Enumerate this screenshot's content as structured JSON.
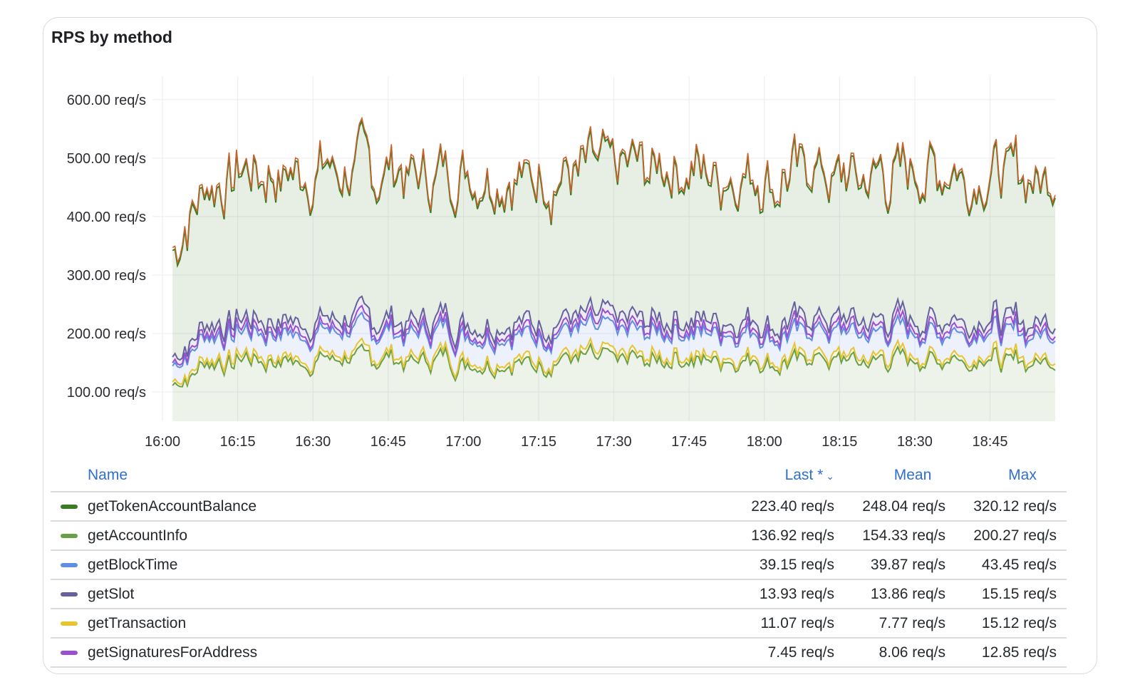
{
  "panel": {
    "title": "RPS by method"
  },
  "chart_data": {
    "type": "area",
    "title": "RPS by method",
    "xlabel": "",
    "ylabel": "",
    "x_ticks": [
      "16:00",
      "16:15",
      "16:30",
      "16:45",
      "17:00",
      "17:15",
      "17:30",
      "17:45",
      "18:00",
      "18:15",
      "18:30",
      "18:45"
    ],
    "y_ticks": [
      "100.00 req/s",
      "200.00 req/s",
      "300.00 req/s",
      "400.00 req/s",
      "500.00 req/s",
      "600.00 req/s"
    ],
    "ylim": [
      50,
      640
    ],
    "x_range_minutes": [
      -2,
      178
    ],
    "stacked": true,
    "series": [
      {
        "name": "getAccountInfo",
        "color": "#6a9e47",
        "mean": 154.33,
        "last": 136.92,
        "max": 200.27,
        "amp": 18
      },
      {
        "name": "getTransaction",
        "color": "#e6c534",
        "mean": 7.77,
        "last": 11.07,
        "max": 15.12,
        "amp": 2
      },
      {
        "name": "getBlockTime",
        "color": "#5f8ee3",
        "mean": 39.87,
        "last": 39.15,
        "max": 43.45,
        "amp": 3
      },
      {
        "name": "getSignaturesForAddress",
        "color": "#9a4fd1",
        "mean": 8.06,
        "last": 7.45,
        "max": 12.85,
        "amp": 3
      },
      {
        "name": "getSlot",
        "color": "#66609e",
        "mean": 13.86,
        "last": 13.93,
        "max": 15.15,
        "amp": 2
      },
      {
        "name": "getTokenAccountBalance",
        "color": "#3a7a25",
        "mean": 248.04,
        "last": 223.4,
        "max": 320.12,
        "amp": 28
      }
    ]
  },
  "legend": {
    "headers": {
      "name": "Name",
      "last": "Last *",
      "mean": "Mean",
      "max": "Max"
    },
    "rows": [
      {
        "name": "getTokenAccountBalance",
        "color": "#3a7a25",
        "last": "223.40 req/s",
        "mean": "248.04 req/s",
        "max": "320.12 req/s"
      },
      {
        "name": "getAccountInfo",
        "color": "#6a9e47",
        "last": "136.92 req/s",
        "mean": "154.33 req/s",
        "max": "200.27 req/s"
      },
      {
        "name": "getBlockTime",
        "color": "#5f8ee3",
        "last": "39.15 req/s",
        "mean": "39.87 req/s",
        "max": "43.45 req/s"
      },
      {
        "name": "getSlot",
        "color": "#66609e",
        "last": "13.93 req/s",
        "mean": "13.86 req/s",
        "max": "15.15 req/s"
      },
      {
        "name": "getTransaction",
        "color": "#e6c534",
        "last": "11.07 req/s",
        "mean": "7.77 req/s",
        "max": "15.12 req/s"
      },
      {
        "name": "getSignaturesForAddress",
        "color": "#9a4fd1",
        "last": "7.45 req/s",
        "mean": "8.06 req/s",
        "max": "12.85 req/s"
      }
    ]
  }
}
